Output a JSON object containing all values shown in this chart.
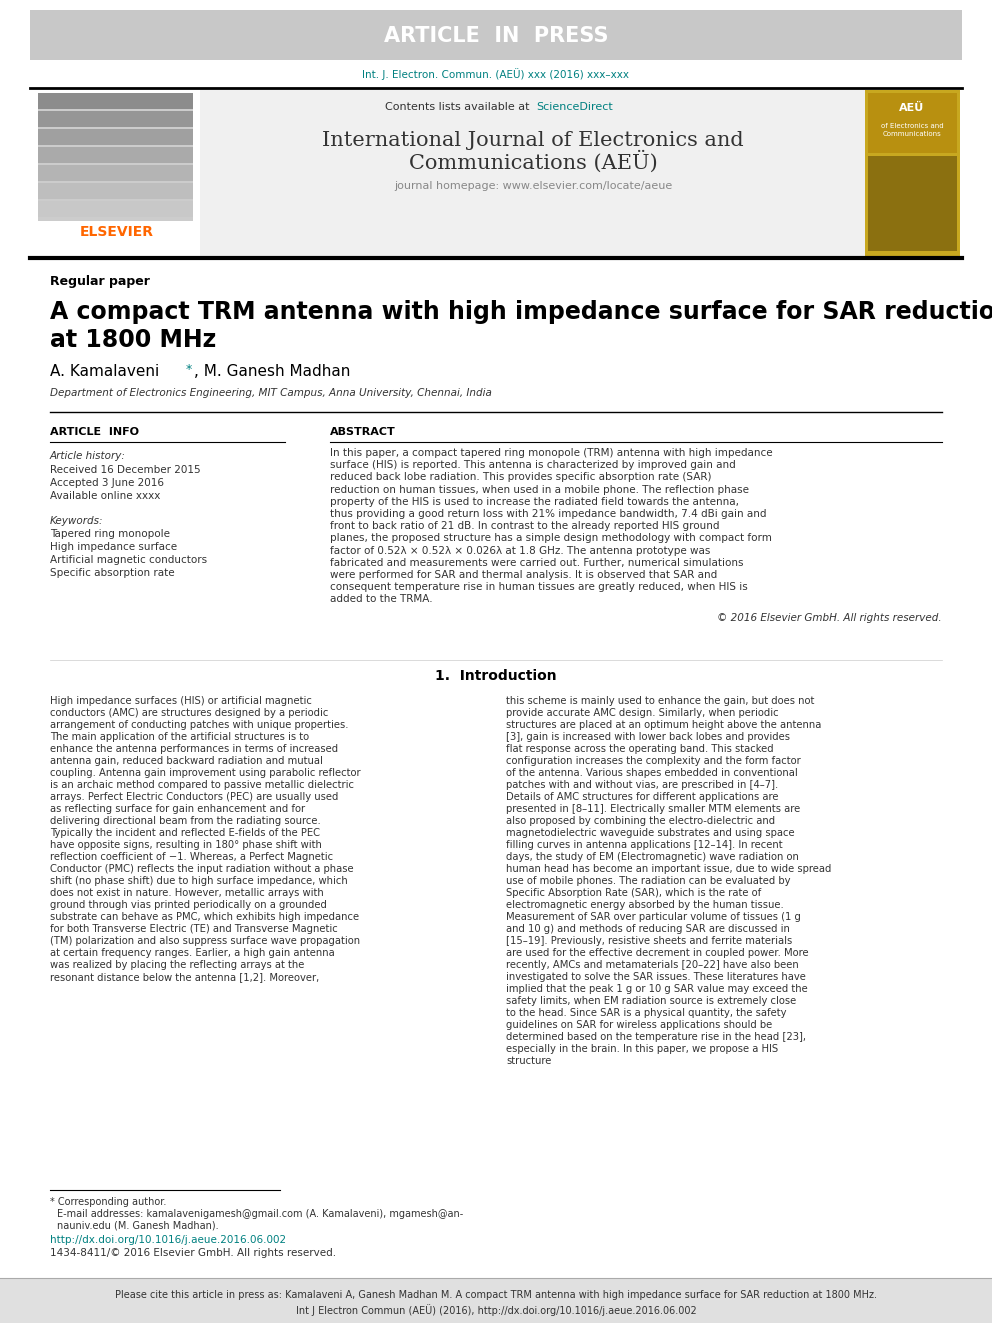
{
  "article_in_press_text": "ARTICLE  IN  PRESS",
  "article_in_press_bg": "#c8c8c8",
  "article_in_press_fg": "#ffffff",
  "journal_ref": "Int. J. Electron. Commun. (AEÜ) xxx (2016) xxx–xxx",
  "journal_ref_color": "#008080",
  "contents_text": "Contents lists available at ",
  "sciencedirect_text": "ScienceDirect",
  "sciencedirect_color": "#008080",
  "journal_name_line1": "International Journal of Electronics and",
  "journal_name_line2": "Communications (AEÜ)",
  "journal_homepage_text": "journal homepage: www.elsevier.com/locate/aeue",
  "elsevier_color": "#FF6600",
  "elsevier_text": "ELSEVIER",
  "header_bg": "#f0f0f0",
  "paper_type": "Regular paper",
  "title_line1": "A compact TRM antenna with high impedance surface for SAR reduction",
  "title_line2": "at 1800 MHz",
  "affiliation": "Department of Electronics Engineering, MIT Campus, Anna University, Chennai, India",
  "article_info_header": "ARTICLE  INFO",
  "abstract_header": "ABSTRACT",
  "article_history_label": "Article history:",
  "received_text": "Received 16 December 2015",
  "accepted_text": "Accepted 3 June 2016",
  "available_text": "Available online xxxx",
  "keywords_label": "Keywords:",
  "keyword1": "Tapered ring monopole",
  "keyword2": "High impedance surface",
  "keyword3": "Artificial magnetic conductors",
  "keyword4": "Specific absorption rate",
  "abstract_text": "In this paper, a compact tapered ring monopole (TRM) antenna with high impedance surface (HIS) is reported. This antenna is characterized by improved gain and reduced back lobe radiation. This provides specific absorption rate (SAR) reduction on human tissues, when used in a mobile phone. The reflection phase property of the HIS is used to increase the radiated field towards the antenna, thus providing a good return loss with 21% impedance bandwidth, 7.4 dBi gain and front to back ratio of 21 dB. In contrast to the already reported HIS ground planes, the proposed structure has a simple design methodology with compact form factor of 0.52λ × 0.52λ × 0.026λ at 1.8 GHz. The antenna prototype was fabricated and measurements were carried out. Further, numerical simulations were performed for SAR and thermal analysis. It is observed that SAR and consequent temperature rise in human tissues are greatly reduced, when HIS is added to the TRMA.",
  "copyright_text": "© 2016 Elsevier GmbH. All rights reserved.",
  "section1_header": "1.  Introduction",
  "intro_col1": "High impedance surfaces (HIS) or artificial magnetic conductors (AMC) are structures designed by a periodic arrangement of conducting patches with unique properties. The main application of the artificial structures is to enhance the antenna performances in terms of increased antenna gain, reduced backward radiation and mutual coupling. Antenna gain improvement using parabolic reflector is an archaic method compared to passive metallic dielectric arrays. Perfect Electric Conductors (PEC) are usually used as reflecting surface for gain enhancement and for delivering directional beam from the radiating source. Typically the incident and reflected E-fields of the PEC have opposite signs, resulting in 180° phase shift with reflection coefficient of −1. Whereas, a Perfect Magnetic Conductor (PMC) reflects the input radiation without a phase shift (no phase shift) due to high surface impedance, which does not exist in nature. However, metallic arrays with ground through vias printed periodically on a grounded substrate can behave as PMC, which exhibits high impedance for both Transverse Electric (TE) and Transverse Magnetic (TM) polarization and also suppress surface wave propagation at certain frequency ranges. Earlier, a high gain antenna was realized by placing the reflecting arrays at the resonant distance below the antenna [1,2]. Moreover,",
  "intro_col2": "this scheme is mainly used to enhance the gain, but does not provide accurate AMC design. Similarly, when periodic structures are placed at an optimum height above the antenna [3], gain is increased with lower back lobes and provides flat response across the operating band. This stacked configuration increases the complexity and the form factor of the antenna. Various shapes embedded in conventional patches with and without vias, are prescribed in [4–7]. Details of AMC structures for different applications are presented in [8–11]. Electrically smaller MTM elements are also proposed by combining the electro-dielectric and magnetodielectric waveguide substrates and using space filling curves in antenna applications [12–14]. In recent days, the study of EM (Electromagnetic) wave radiation on human head has become an important issue, due to wide spread use of mobile phones. The radiation can be evaluated by Specific Absorption Rate (SAR), which is the rate of electromagnetic energy absorbed by the human tissue. Measurement of SAR over particular volume of tissues (1 g and 10 g) and methods of reducing SAR are discussed in [15–19]. Previously, resistive sheets and ferrite materials are used for the effective decrement in coupled power. More recently, AMCs and metamaterials [20–22] have also been investigated to solve the SAR issues. These literatures have implied that the peak 1 g or 10 g SAR value may exceed the safety limits, when EM radiation source is extremely close to the head. Since SAR is a physical quantity, the safety guidelines on SAR for wireless applications should be determined based on the temperature rise in the head [23], especially in the brain. In this paper, we propose a HIS structure",
  "doi_text": "http://dx.doi.org/10.1016/j.aeue.2016.06.002",
  "doi_color": "#008080",
  "issn_text": "1434-8411/© 2016 Elsevier GmbH. All rights reserved.",
  "footer_bg": "#e0e0e0",
  "black": "#000000",
  "white": "#ffffff",
  "dark_gray": "#333333",
  "light_gray": "#f0f0f0",
  "medium_gray": "#888888",
  "teal": "#008080"
}
